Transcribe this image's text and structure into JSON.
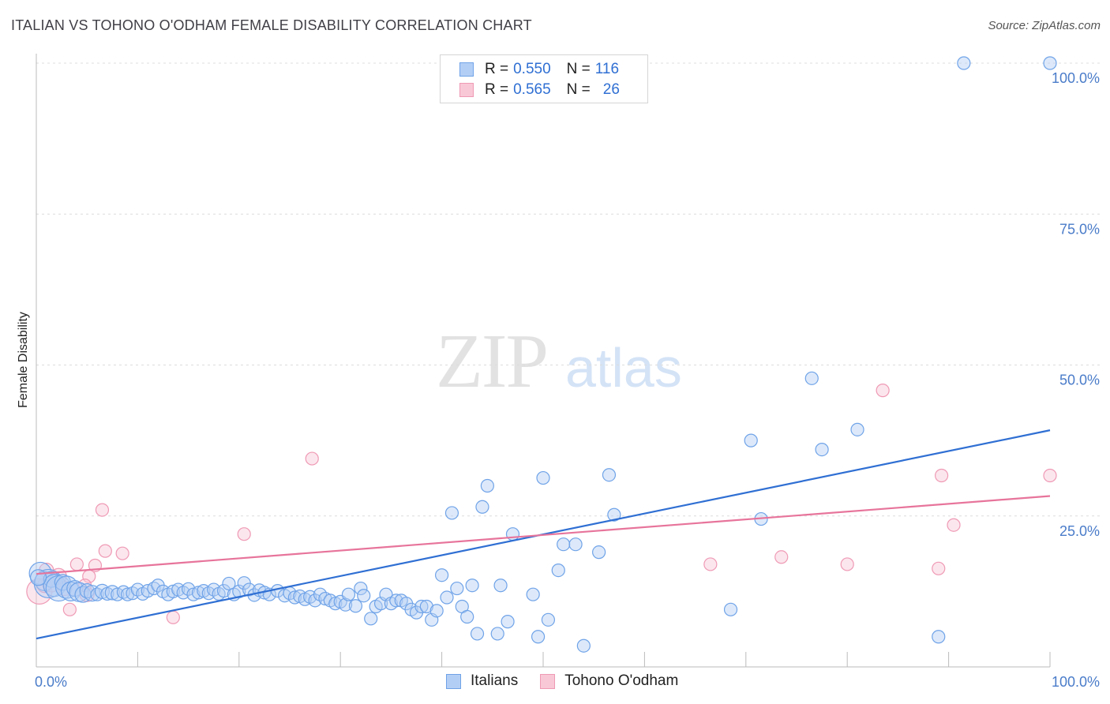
{
  "header": {
    "title": "ITALIAN VS TOHONO O'ODHAM FEMALE DISABILITY CORRELATION CHART",
    "source": "Source: ZipAtlas.com"
  },
  "legend": {
    "series": [
      {
        "name": "Italians",
        "r_label": "R =",
        "r_value": "0.550",
        "n_label": "N =",
        "n_value": "116",
        "color": "#6fa3e8",
        "fill": "#b3cef5"
      },
      {
        "name": "Tohono O'odham",
        "r_label": "R =",
        "r_value": "0.565",
        "n_label": "N =",
        "n_value": "26",
        "color": "#ef9ab5",
        "fill": "#f9c8d7"
      }
    ]
  },
  "watermark": {
    "zip": "ZIP",
    "atlas": "atlas"
  },
  "chart_data": {
    "type": "scatter",
    "title": "ITALIAN VS TOHONO O'ODHAM FEMALE DISABILITY CORRELATION CHART",
    "xlabel": "",
    "ylabel": "Female Disability",
    "xlim": [
      0,
      100
    ],
    "ylim": [
      0,
      100
    ],
    "x_tick_labels": [
      "0.0%",
      "100.0%"
    ],
    "y_ticks": [
      25,
      50,
      75,
      100
    ],
    "y_tick_labels": [
      "25.0%",
      "50.0%",
      "75.0%",
      "100.0%"
    ],
    "grid": true,
    "series": [
      {
        "name": "Italians",
        "color": "#6fa3e8",
        "trendline": {
          "x": [
            0,
            100
          ],
          "y": [
            4.7,
            39.2
          ],
          "color": "#2f6fd3"
        },
        "points": [
          [
            0.4,
            15.5,
            14
          ],
          [
            0.8,
            14.2,
            12
          ],
          [
            1.2,
            13.8,
            18
          ],
          [
            1.5,
            14.5,
            10
          ],
          [
            1.8,
            13.5,
            14
          ],
          [
            2.2,
            13.0,
            16
          ],
          [
            2.6,
            14.0,
            10
          ],
          [
            3.0,
            13.2,
            14
          ],
          [
            3.4,
            12.5,
            12
          ],
          [
            3.8,
            13.0,
            10
          ],
          [
            4.2,
            12.4,
            12
          ],
          [
            4.6,
            12.0,
            10
          ],
          [
            5.0,
            12.6,
            9
          ],
          [
            5.5,
            12.2,
            10
          ],
          [
            6.0,
            12.0,
            8
          ],
          [
            6.5,
            12.5,
            9
          ],
          [
            7.0,
            12.1,
            8
          ],
          [
            7.5,
            12.3,
            9
          ],
          [
            8.0,
            12.0,
            8
          ],
          [
            8.6,
            12.4,
            8
          ],
          [
            9.0,
            12.0,
            8
          ],
          [
            9.5,
            12.2,
            8
          ],
          [
            10.0,
            12.8,
            8
          ],
          [
            10.5,
            12.1,
            8
          ],
          [
            11.0,
            12.6,
            8
          ],
          [
            11.6,
            13.0,
            8
          ],
          [
            12.0,
            13.5,
            8
          ],
          [
            12.5,
            12.5,
            8
          ],
          [
            13.0,
            12.0,
            8
          ],
          [
            13.5,
            12.5,
            8
          ],
          [
            14.0,
            12.8,
            8
          ],
          [
            14.5,
            12.3,
            8
          ],
          [
            15.0,
            12.9,
            8
          ],
          [
            15.5,
            12.0,
            8
          ],
          [
            16.0,
            12.3,
            8
          ],
          [
            16.5,
            12.6,
            8
          ],
          [
            17.0,
            12.2,
            8
          ],
          [
            17.5,
            12.8,
            8
          ],
          [
            18.0,
            12.1,
            8
          ],
          [
            18.5,
            12.6,
            8
          ],
          [
            19.0,
            13.8,
            8
          ],
          [
            19.5,
            12.0,
            8
          ],
          [
            20.0,
            12.5,
            8
          ],
          [
            20.5,
            13.9,
            8
          ],
          [
            21.0,
            12.8,
            8
          ],
          [
            21.5,
            11.9,
            8
          ],
          [
            22.0,
            12.7,
            8
          ],
          [
            22.5,
            12.3,
            8
          ],
          [
            23.0,
            12.0,
            8
          ],
          [
            23.8,
            12.6,
            8
          ],
          [
            24.5,
            11.8,
            8
          ],
          [
            25.0,
            12.2,
            8
          ],
          [
            25.5,
            11.5,
            8
          ],
          [
            26.0,
            11.7,
            8
          ],
          [
            26.5,
            11.2,
            8
          ],
          [
            27.0,
            11.6,
            8
          ],
          [
            27.5,
            11.0,
            8
          ],
          [
            28.0,
            12.0,
            8
          ],
          [
            28.5,
            11.3,
            8
          ],
          [
            29.0,
            11.0,
            8
          ],
          [
            29.5,
            10.5,
            8
          ],
          [
            30.0,
            10.8,
            8
          ],
          [
            30.5,
            10.3,
            8
          ],
          [
            30.8,
            12.0,
            8
          ],
          [
            31.5,
            10.1,
            8
          ],
          [
            32.0,
            13.0,
            8
          ],
          [
            32.3,
            11.8,
            8
          ],
          [
            33.0,
            8.0,
            8
          ],
          [
            33.5,
            10.0,
            8
          ],
          [
            34.0,
            10.5,
            8
          ],
          [
            34.5,
            12.0,
            8
          ],
          [
            35.0,
            10.5,
            8
          ],
          [
            35.5,
            11.0,
            8
          ],
          [
            36.0,
            11.0,
            8
          ],
          [
            36.5,
            10.5,
            8
          ],
          [
            37.0,
            9.5,
            8
          ],
          [
            37.5,
            9.0,
            8
          ],
          [
            38.0,
            10.0,
            8
          ],
          [
            38.5,
            10.0,
            8
          ],
          [
            39.0,
            7.8,
            8
          ],
          [
            39.5,
            9.3,
            8
          ],
          [
            40.0,
            15.2,
            8
          ],
          [
            40.5,
            11.5,
            8
          ],
          [
            41.0,
            25.5,
            8
          ],
          [
            41.5,
            13.0,
            8
          ],
          [
            42.0,
            10.0,
            8
          ],
          [
            42.5,
            8.3,
            8
          ],
          [
            43.0,
            13.5,
            8
          ],
          [
            43.5,
            5.5,
            8
          ],
          [
            44.0,
            26.5,
            8
          ],
          [
            44.5,
            30.0,
            8
          ],
          [
            45.5,
            5.5,
            8
          ],
          [
            45.8,
            13.5,
            8
          ],
          [
            46.5,
            7.5,
            8
          ],
          [
            47.0,
            22.0,
            8
          ],
          [
            49.0,
            12.0,
            8
          ],
          [
            49.5,
            5.0,
            8
          ],
          [
            50.0,
            31.3,
            8
          ],
          [
            50.5,
            7.8,
            8
          ],
          [
            51.5,
            16.0,
            8
          ],
          [
            52.0,
            20.3,
            8
          ],
          [
            53.2,
            20.3,
            8
          ],
          [
            54.0,
            3.5,
            8
          ],
          [
            55.5,
            19.0,
            8
          ],
          [
            56.5,
            31.8,
            8
          ],
          [
            57.0,
            25.2,
            8
          ],
          [
            68.5,
            9.5,
            8
          ],
          [
            70.5,
            37.5,
            8
          ],
          [
            71.5,
            24.5,
            8
          ],
          [
            76.5,
            47.8,
            8
          ],
          [
            77.5,
            36.0,
            8
          ],
          [
            81.0,
            39.3,
            8
          ],
          [
            89.0,
            5.0,
            8
          ],
          [
            91.5,
            100,
            8
          ],
          [
            100,
            100,
            8
          ],
          [
            0.2,
            14.8,
            10
          ]
        ]
      },
      {
        "name": "Tohono O'odham",
        "color": "#ef9ab5",
        "trendline": {
          "x": [
            0,
            100
          ],
          "y": [
            15.4,
            28.3
          ],
          "color": "#e7749b"
        },
        "points": [
          [
            0.3,
            12.5,
            16
          ],
          [
            1.5,
            14.0,
            12
          ],
          [
            2.2,
            15.0,
            10
          ],
          [
            3.3,
            9.5,
            8
          ],
          [
            4.0,
            17.0,
            8
          ],
          [
            5.0,
            12.0,
            9
          ],
          [
            5.2,
            15.0,
            8
          ],
          [
            5.8,
            16.8,
            8
          ],
          [
            6.5,
            26.0,
            8
          ],
          [
            6.8,
            19.2,
            8
          ],
          [
            8.5,
            18.8,
            8
          ],
          [
            13.5,
            8.2,
            8
          ],
          [
            20.5,
            22.0,
            8
          ],
          [
            27.2,
            34.5,
            8
          ],
          [
            66.5,
            17.0,
            8
          ],
          [
            73.5,
            18.2,
            8
          ],
          [
            80.0,
            17.0,
            8
          ],
          [
            83.5,
            45.8,
            8
          ],
          [
            89.0,
            16.3,
            8
          ],
          [
            89.3,
            31.7,
            8
          ],
          [
            90.5,
            23.5,
            8
          ],
          [
            100,
            31.7,
            8
          ],
          [
            1.0,
            16.0,
            9
          ],
          [
            2.8,
            13.0,
            9
          ],
          [
            4.8,
            13.5,
            8
          ],
          [
            0.8,
            13.5,
            9
          ]
        ]
      }
    ]
  }
}
